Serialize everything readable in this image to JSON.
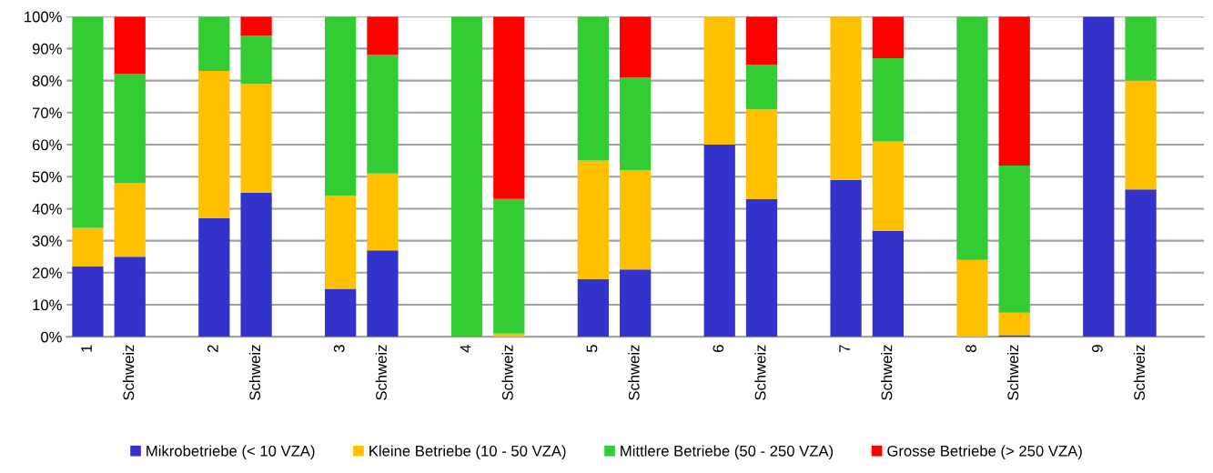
{
  "chart_data": {
    "type": "bar",
    "stacked": true,
    "categories": [
      "1",
      "Schweiz",
      null,
      "2",
      "Schweiz",
      null,
      "3",
      "Schweiz",
      null,
      "4",
      "Schweiz",
      null,
      "5",
      "Schweiz",
      null,
      "6",
      "Schweiz",
      null,
      "7",
      "Schweiz",
      null,
      "8",
      "Schweiz",
      null,
      "9",
      "Schweiz",
      null
    ],
    "series": [
      {
        "name": "Mikrobetriebe (< 10 VZA)",
        "color": "#3333cc",
        "values": [
          22,
          25,
          null,
          37,
          45,
          null,
          15,
          27,
          null,
          0,
          0,
          null,
          18,
          21,
          null,
          60,
          43,
          null,
          49,
          33,
          null,
          0,
          0.5,
          null,
          100,
          46,
          null
        ]
      },
      {
        "name": "Kleine Betriebe (10 - 50 VZA)",
        "color": "#ffc000",
        "values": [
          12,
          23,
          null,
          46,
          34,
          null,
          29,
          24,
          null,
          0,
          1,
          null,
          37,
          31,
          null,
          40,
          28,
          null,
          51,
          28,
          null,
          24,
          7,
          null,
          0,
          34,
          null
        ]
      },
      {
        "name": "Mittlere Betriebe (50 - 250 VZA)",
        "color": "#33cc33",
        "values": [
          66,
          34,
          null,
          17,
          15,
          null,
          56,
          37,
          null,
          100,
          42,
          null,
          45,
          29,
          null,
          0,
          14,
          null,
          0,
          26,
          null,
          76,
          46,
          null,
          0,
          20,
          null
        ]
      },
      {
        "name": "Grosse Betriebe (> 250 VZA)",
        "color": "#ff0000",
        "values": [
          0,
          18,
          null,
          0,
          6,
          null,
          0,
          12,
          null,
          0,
          57,
          null,
          0,
          19,
          null,
          0,
          15,
          null,
          0,
          13,
          null,
          0,
          46.5,
          null,
          0,
          0,
          null
        ]
      }
    ],
    "ylim": [
      0,
      100
    ],
    "yticks": [
      {
        "value": 0,
        "label": "0%"
      },
      {
        "value": 10,
        "label": "10%"
      },
      {
        "value": 20,
        "label": "20%"
      },
      {
        "value": 30,
        "label": "30%"
      },
      {
        "value": 40,
        "label": "40%"
      },
      {
        "value": 50,
        "label": "50%"
      },
      {
        "value": 60,
        "label": "60%"
      },
      {
        "value": 70,
        "label": "70%"
      },
      {
        "value": 80,
        "label": "80%"
      },
      {
        "value": 90,
        "label": "90%"
      },
      {
        "value": 100,
        "label": "100%"
      }
    ],
    "grid": "y",
    "legend": "bottom"
  }
}
